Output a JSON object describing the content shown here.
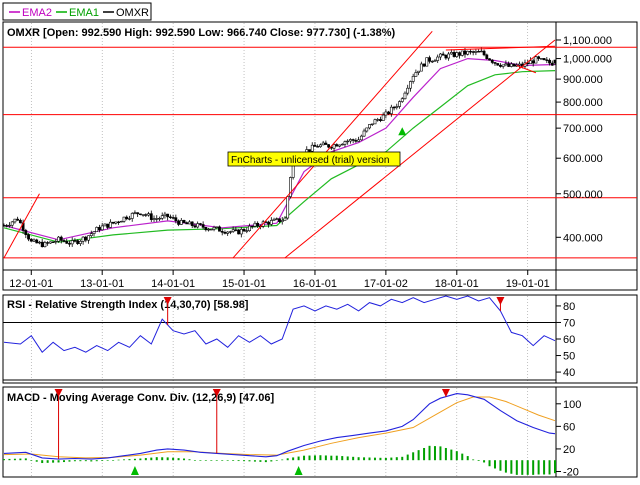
{
  "legend": {
    "items": [
      {
        "label": "EMA2",
        "color": "#c000c0"
      },
      {
        "label": "EMA1",
        "color": "#00b000"
      },
      {
        "label": "OMXR",
        "color": "#000000"
      }
    ]
  },
  "watermark": "FnCharts - unlicensed (trial) version",
  "colors": {
    "price_candle": "#000000",
    "ema1": "#22bb22",
    "ema2": "#bb22cc",
    "trendline": "#ff0000",
    "rsi": "#2222dd",
    "macd": "#2222dd",
    "signal": "#f0a020",
    "hist": "#00a000",
    "buy_marker": "#00bb00",
    "sell_marker": "#dd0000",
    "watermark_bg": "#ffff00"
  },
  "chart_data": [
    {
      "type": "candlestick",
      "title": "OMXR [Open: 992.590  High: 992.590  Low: 966.740  Close: 977.730]  (-1.38%)",
      "x_tick_labels": [
        "12-01-01",
        "13-01-01",
        "14-01-01",
        "15-01-01",
        "16-01-01",
        "17-01-02",
        "18-01-01",
        "19-01-01"
      ],
      "x_tick_days": [
        10,
        36,
        62,
        88,
        114,
        140,
        166,
        192
      ],
      "y_tick_labels": [
        "1,100.000",
        "1,000.000",
        "900.000",
        "800.000",
        "700.000",
        "600.000",
        "500.000",
        "400.000"
      ],
      "y_tick_values": [
        1100,
        1000,
        900,
        800,
        700,
        600,
        500,
        400
      ],
      "y_scale": "log",
      "y_range": [
        340,
        1200
      ],
      "horizontal_lines": [
        1060,
        750,
        490,
        360
      ],
      "trend_lines": [
        {
          "from": {
            "day": 0,
            "price": 360
          },
          "to": {
            "day": 13,
            "price": 500
          }
        },
        {
          "from": {
            "day": 84,
            "price": 360
          },
          "to": {
            "day": 157,
            "price": 1150
          }
        },
        {
          "from": {
            "day": 103,
            "price": 360
          },
          "to": {
            "day": 202,
            "price": 1100
          }
        },
        {
          "from": {
            "day": 162,
            "price": 1045
          },
          "to": {
            "day": 202,
            "price": 1065
          }
        },
        {
          "from": {
            "day": 188,
            "price": 965
          },
          "to": {
            "day": 195,
            "price": 930
          }
        }
      ],
      "series": [
        {
          "name": "OMXR",
          "kind": "candles",
          "anchors": [
            [
              0,
              425
            ],
            [
              5,
              440
            ],
            [
              10,
              390
            ],
            [
              15,
              385
            ],
            [
              20,
              395
            ],
            [
              25,
              388
            ],
            [
              30,
              400
            ],
            [
              35,
              420
            ],
            [
              40,
              430
            ],
            [
              45,
              445
            ],
            [
              50,
              455
            ],
            [
              55,
              440
            ],
            [
              60,
              445
            ],
            [
              65,
              430
            ],
            [
              70,
              425
            ],
            [
              75,
              420
            ],
            [
              80,
              415
            ],
            [
              85,
              410
            ],
            [
              90,
              420
            ],
            [
              95,
              430
            ],
            [
              100,
              435
            ],
            [
              103,
              440
            ],
            [
              106,
              600
            ],
            [
              110,
              620
            ],
            [
              115,
              640
            ],
            [
              120,
              640
            ],
            [
              125,
              655
            ],
            [
              130,
              660
            ],
            [
              135,
              720
            ],
            [
              140,
              750
            ],
            [
              145,
              800
            ],
            [
              150,
              920
            ],
            [
              155,
              990
            ],
            [
              160,
              1010
            ],
            [
              165,
              1020
            ],
            [
              170,
              1030
            ],
            [
              175,
              1030
            ],
            [
              180,
              980
            ],
            [
              185,
              960
            ],
            [
              190,
              965
            ],
            [
              195,
              995
            ],
            [
              200,
              978
            ]
          ],
          "final_candle": {
            "open": 992.59,
            "high": 992.59,
            "low": 966.74,
            "close": 977.73
          }
        },
        {
          "name": "EMA1",
          "kind": "line",
          "points": [
            [
              0,
              420
            ],
            [
              20,
              390
            ],
            [
              40,
              405
            ],
            [
              60,
              415
            ],
            [
              80,
              418
            ],
            [
              100,
              425
            ],
            [
              110,
              480
            ],
            [
              120,
              540
            ],
            [
              130,
              580
            ],
            [
              140,
              620
            ],
            [
              150,
              700
            ],
            [
              160,
              780
            ],
            [
              170,
              870
            ],
            [
              180,
              920
            ],
            [
              190,
              935
            ],
            [
              202,
              940
            ]
          ]
        },
        {
          "name": "EMA2",
          "kind": "line",
          "points": [
            [
              0,
              425
            ],
            [
              20,
              395
            ],
            [
              40,
              420
            ],
            [
              60,
              435
            ],
            [
              80,
              420
            ],
            [
              100,
              430
            ],
            [
              110,
              560
            ],
            [
              120,
              620
            ],
            [
              130,
              650
            ],
            [
              140,
              700
            ],
            [
              150,
              820
            ],
            [
              160,
              950
            ],
            [
              170,
              1000
            ],
            [
              180,
              990
            ],
            [
              190,
              965
            ],
            [
              202,
              970
            ]
          ]
        }
      ]
    },
    {
      "type": "line",
      "title": "RSI - Relative Strength Index (14,30,70)  [58.98]",
      "y_tick_labels": [
        "80",
        "70",
        "60",
        "50",
        "40"
      ],
      "y_tick_values": [
        80,
        70,
        60,
        50,
        40
      ],
      "y_range": [
        34,
        86
      ],
      "reference_lines": [
        70,
        30
      ],
      "series": [
        {
          "name": "RSI",
          "points": [
            [
              0,
              58
            ],
            [
              6,
              57
            ],
            [
              10,
              62
            ],
            [
              14,
              52
            ],
            [
              18,
              58
            ],
            [
              22,
              53
            ],
            [
              26,
              55
            ],
            [
              30,
              52
            ],
            [
              34,
              56
            ],
            [
              38,
              53
            ],
            [
              42,
              58
            ],
            [
              46,
              55
            ],
            [
              50,
              62
            ],
            [
              54,
              57
            ],
            [
              58,
              72
            ],
            [
              62,
              65
            ],
            [
              66,
              63
            ],
            [
              70,
              65
            ],
            [
              74,
              57
            ],
            [
              78,
              60
            ],
            [
              82,
              55
            ],
            [
              86,
              62
            ],
            [
              90,
              58
            ],
            [
              94,
              62
            ],
            [
              98,
              57
            ],
            [
              102,
              60
            ],
            [
              106,
              78
            ],
            [
              110,
              80
            ],
            [
              114,
              77
            ],
            [
              118,
              80
            ],
            [
              122,
              78
            ],
            [
              126,
              81
            ],
            [
              130,
              77
            ],
            [
              134,
              82
            ],
            [
              138,
              80
            ],
            [
              142,
              84
            ],
            [
              146,
              82
            ],
            [
              150,
              85
            ],
            [
              154,
              82
            ],
            [
              158,
              84
            ],
            [
              162,
              86
            ],
            [
              166,
              84
            ],
            [
              170,
              86
            ],
            [
              174,
              83
            ],
            [
              178,
              85
            ],
            [
              182,
              77
            ],
            [
              186,
              64
            ],
            [
              190,
              62
            ],
            [
              194,
              56
            ],
            [
              198,
              62
            ],
            [
              202,
              59
            ]
          ]
        }
      ]
    },
    {
      "type": "line",
      "title": "MACD - Moving Average Conv. Div. (12,26,9)  [47.06]",
      "y_tick_labels": [
        "100",
        "60",
        "20",
        "-20"
      ],
      "y_tick_values": [
        100,
        60,
        20,
        -20
      ],
      "y_range": [
        -28,
        128
      ],
      "series": [
        {
          "name": "MACD",
          "points": [
            [
              0,
              12
            ],
            [
              8,
              14
            ],
            [
              14,
              4
            ],
            [
              20,
              2
            ],
            [
              26,
              3
            ],
            [
              32,
              2
            ],
            [
              38,
              4
            ],
            [
              44,
              8
            ],
            [
              50,
              12
            ],
            [
              56,
              18
            ],
            [
              60,
              20
            ],
            [
              66,
              18
            ],
            [
              72,
              14
            ],
            [
              78,
              12
            ],
            [
              84,
              10
            ],
            [
              90,
              8
            ],
            [
              96,
              6
            ],
            [
              100,
              8
            ],
            [
              104,
              16
            ],
            [
              110,
              26
            ],
            [
              116,
              34
            ],
            [
              122,
              40
            ],
            [
              128,
              44
            ],
            [
              134,
              48
            ],
            [
              140,
              52
            ],
            [
              146,
              60
            ],
            [
              150,
              72
            ],
            [
              156,
              100
            ],
            [
              160,
              110
            ],
            [
              166,
              118
            ],
            [
              170,
              116
            ],
            [
              176,
              108
            ],
            [
              182,
              88
            ],
            [
              188,
              70
            ],
            [
              194,
              58
            ],
            [
              200,
              48
            ],
            [
              202,
              47
            ]
          ]
        },
        {
          "name": "Signal",
          "points": [
            [
              0,
              10
            ],
            [
              10,
              11
            ],
            [
              20,
              6
            ],
            [
              30,
              4
            ],
            [
              40,
              5
            ],
            [
              50,
              9
            ],
            [
              60,
              15
            ],
            [
              70,
              15
            ],
            [
              80,
              12
            ],
            [
              90,
              10
            ],
            [
              100,
              9
            ],
            [
              110,
              18
            ],
            [
              120,
              30
            ],
            [
              130,
              40
            ],
            [
              140,
              48
            ],
            [
              150,
              58
            ],
            [
              158,
              80
            ],
            [
              166,
              102
            ],
            [
              172,
              112
            ],
            [
              178,
              112
            ],
            [
              184,
              104
            ],
            [
              190,
              92
            ],
            [
              196,
              80
            ],
            [
              202,
              70
            ]
          ]
        },
        {
          "name": "Histogram",
          "kind": "bars",
          "values_from": "MACD minus Signal"
        }
      ]
    }
  ],
  "signals": {
    "price": [
      {
        "day": 146,
        "kind": "buy"
      }
    ],
    "rsi": [
      {
        "day": 60,
        "kind": "sell"
      },
      {
        "day": 182,
        "kind": "sell"
      }
    ],
    "macd": [
      {
        "day": 20,
        "kind": "sell"
      },
      {
        "day": 78,
        "kind": "sell"
      },
      {
        "day": 162,
        "kind": "sell"
      },
      {
        "day": 48,
        "kind": "buy"
      },
      {
        "day": 108,
        "kind": "buy"
      }
    ]
  }
}
